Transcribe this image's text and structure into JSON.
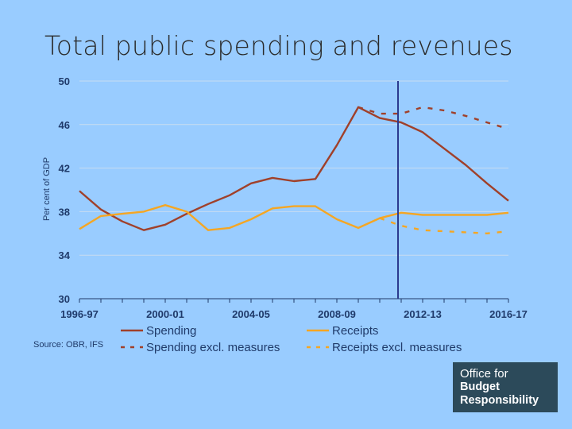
{
  "slide": {
    "title": "Total public spending and revenues",
    "source": "Source: OBR, IFS",
    "logo": {
      "line1": "Office for",
      "line2": "Budget",
      "line3": "Responsibility"
    }
  },
  "chart_data": {
    "type": "line",
    "ylabel": "Per cent of GDP",
    "ylim": [
      30,
      50
    ],
    "yticks": [
      30,
      34,
      38,
      42,
      46,
      50
    ],
    "x": [
      "1996-97",
      "1997-98",
      "1998-99",
      "1999-00",
      "2000-01",
      "2001-02",
      "2002-03",
      "2003-04",
      "2004-05",
      "2005-06",
      "2006-07",
      "2007-08",
      "2008-09",
      "2009-10",
      "2010-11",
      "2011-12",
      "2012-13",
      "2013-14",
      "2014-15",
      "2015-16",
      "2016-17"
    ],
    "xtick_labels": [
      "1996-97",
      "2000-01",
      "2004-05",
      "2008-09",
      "2012-13",
      "2016-17"
    ],
    "grid": true,
    "legend_position": "bottom",
    "vertical_marker": {
      "x": "2011-12"
    },
    "colors": {
      "spending": "#a0402a",
      "receipts": "#f5a623",
      "marker": "#2b3a8f",
      "grid": "#c8dcf0",
      "axis": "#1f3a6a"
    },
    "series": [
      {
        "key": "spending",
        "name": "Spending",
        "style": "solid",
        "x": [
          "1996-97",
          "1997-98",
          "1998-99",
          "1999-00",
          "2000-01",
          "2001-02",
          "2002-03",
          "2003-04",
          "2004-05",
          "2005-06",
          "2006-07",
          "2007-08",
          "2008-09",
          "2009-10",
          "2010-11",
          "2011-12",
          "2012-13",
          "2013-14",
          "2014-15",
          "2015-16",
          "2016-17"
        ],
        "values": [
          39.9,
          38.2,
          37.1,
          36.3,
          36.8,
          37.8,
          38.7,
          39.5,
          40.6,
          41.1,
          40.8,
          41.0,
          44.1,
          47.6,
          46.6,
          46.2,
          45.3,
          43.8,
          42.3,
          40.6,
          39.0
        ]
      },
      {
        "key": "spending_excl",
        "name": "Spending excl. measures",
        "style": "dashed",
        "x": [
          "2009-10",
          "2010-11",
          "2011-12",
          "2012-13",
          "2013-14",
          "2014-15",
          "2015-16",
          "2016-17"
        ],
        "values": [
          47.6,
          47.0,
          47.0,
          47.6,
          47.3,
          46.8,
          46.2,
          45.6
        ]
      },
      {
        "key": "receipts",
        "name": "Receipts",
        "style": "solid",
        "x": [
          "1996-97",
          "1997-98",
          "1998-99",
          "1999-00",
          "2000-01",
          "2001-02",
          "2002-03",
          "2003-04",
          "2004-05",
          "2005-06",
          "2006-07",
          "2007-08",
          "2008-09",
          "2009-10",
          "2010-11",
          "2011-12",
          "2012-13",
          "2013-14",
          "2014-15",
          "2015-16",
          "2016-17"
        ],
        "values": [
          36.4,
          37.6,
          37.8,
          38.0,
          38.6,
          38.0,
          36.3,
          36.5,
          37.3,
          38.3,
          38.5,
          38.5,
          37.3,
          36.5,
          37.4,
          37.9,
          37.7,
          37.7,
          37.7,
          37.7,
          37.9
        ]
      },
      {
        "key": "receipts_excl",
        "name": "Receipts excl. measures",
        "style": "dashed",
        "x": [
          "2010-11",
          "2011-12",
          "2012-13",
          "2013-14",
          "2014-15",
          "2015-16",
          "2016-17"
        ],
        "values": [
          37.4,
          36.7,
          36.3,
          36.2,
          36.1,
          36.0,
          36.2
        ]
      }
    ]
  }
}
